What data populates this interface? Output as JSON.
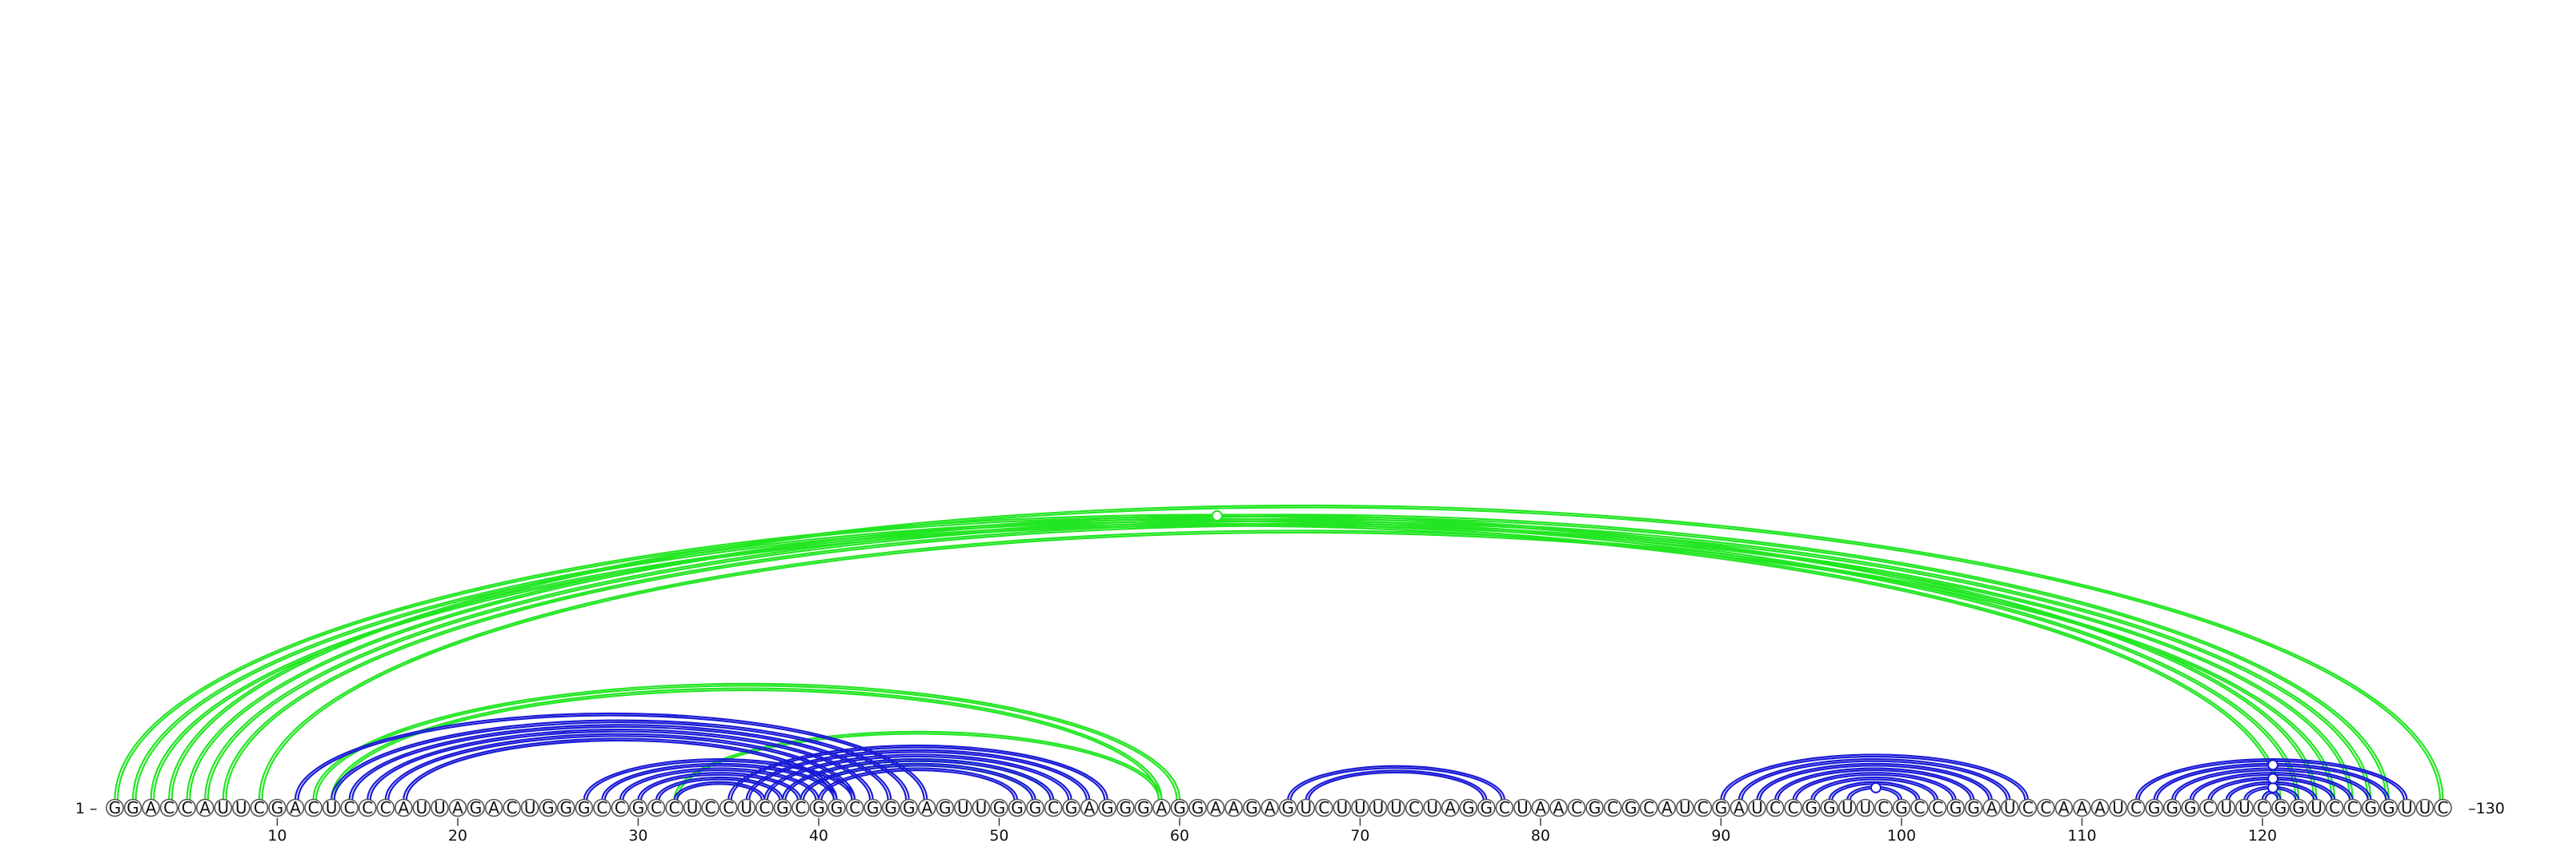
{
  "sequence": "GGACCAUUCGACUCCCAUUAGACUGGGCCGCCUCCUCGCGGCGGGAGUUGGGCGAGGGAGGAAGAGUCUUUUCUAGGCUAACGCGCAUCGAUCCGGUUCGCCGGAUCCAAAUCGGGCUUCGGUCCGGUUC",
  "start_label": "1 –",
  "end_label": "–130",
  "ticks": [
    10,
    20,
    30,
    40,
    50,
    60,
    70,
    80,
    90,
    100,
    110,
    120
  ],
  "colors": {
    "green": "#22e622",
    "blue": "#1a1ad6"
  },
  "arcs": [
    {
      "i": 1,
      "j": 123,
      "color": "green"
    },
    {
      "i": 2,
      "j": 122,
      "color": "green"
    },
    {
      "i": 3,
      "j": 121,
      "color": "green"
    },
    {
      "i": 4,
      "j": 130,
      "color": "green"
    },
    {
      "i": 5,
      "j": 127,
      "color": "green"
    },
    {
      "i": 6,
      "j": 126,
      "color": "green"
    },
    {
      "i": 7,
      "j": 125,
      "color": "green"
    },
    {
      "i": 9,
      "j": 124,
      "color": "green"
    },
    {
      "i": 12,
      "j": 60,
      "color": "green"
    },
    {
      "i": 13,
      "j": 59,
      "color": "green"
    },
    {
      "i": 32,
      "j": 59,
      "color": "green"
    },
    {
      "i": 38,
      "j": 53,
      "color": "green"
    },
    {
      "i": 39,
      "j": 52,
      "color": "green"
    },
    {
      "i": 11,
      "j": 46,
      "color": "blue"
    },
    {
      "i": 13,
      "j": 45,
      "color": "blue"
    },
    {
      "i": 14,
      "j": 44,
      "color": "blue"
    },
    {
      "i": 15,
      "j": 43,
      "color": "blue"
    },
    {
      "i": 16,
      "j": 42,
      "color": "blue"
    },
    {
      "i": 17,
      "j": 41,
      "color": "blue"
    },
    {
      "i": 27,
      "j": 42,
      "color": "blue"
    },
    {
      "i": 28,
      "j": 41,
      "color": "blue"
    },
    {
      "i": 29,
      "j": 40,
      "color": "blue"
    },
    {
      "i": 30,
      "j": 39,
      "color": "blue"
    },
    {
      "i": 31,
      "j": 38,
      "color": "blue"
    },
    {
      "i": 32,
      "j": 37,
      "color": "blue"
    },
    {
      "i": 35,
      "j": 56,
      "color": "blue"
    },
    {
      "i": 36,
      "j": 55,
      "color": "blue"
    },
    {
      "i": 37,
      "j": 54,
      "color": "blue"
    },
    {
      "i": 38,
      "j": 53,
      "color": "blue"
    },
    {
      "i": 39,
      "j": 52,
      "color": "blue"
    },
    {
      "i": 40,
      "j": 51,
      "color": "blue"
    },
    {
      "i": 66,
      "j": 78,
      "color": "blue"
    },
    {
      "i": 67,
      "j": 77,
      "color": "blue"
    },
    {
      "i": 90,
      "j": 107,
      "color": "blue"
    },
    {
      "i": 91,
      "j": 106,
      "color": "blue"
    },
    {
      "i": 92,
      "j": 105,
      "color": "blue"
    },
    {
      "i": 93,
      "j": 104,
      "color": "blue"
    },
    {
      "i": 94,
      "j": 103,
      "color": "blue"
    },
    {
      "i": 95,
      "j": 102,
      "color": "blue"
    },
    {
      "i": 96,
      "j": 101,
      "color": "blue"
    },
    {
      "i": 97,
      "j": 100,
      "color": "blue"
    },
    {
      "i": 113,
      "j": 128,
      "color": "blue"
    },
    {
      "i": 114,
      "j": 127,
      "color": "blue"
    },
    {
      "i": 115,
      "j": 126,
      "color": "blue"
    },
    {
      "i": 116,
      "j": 125,
      "color": "blue"
    },
    {
      "i": 117,
      "j": 124,
      "color": "blue"
    },
    {
      "i": 118,
      "j": 123,
      "color": "blue"
    },
    {
      "i": 119,
      "j": 122,
      "color": "blue"
    },
    {
      "i": 120,
      "j": 121,
      "color": "blue"
    }
  ],
  "markers": [
    {
      "i": 1,
      "j": 123,
      "color": "green"
    },
    {
      "i": 97,
      "j": 100,
      "color": "blue"
    },
    {
      "i": 119,
      "j": 122,
      "color": "blue"
    },
    {
      "i": 117,
      "j": 124,
      "color": "blue"
    },
    {
      "i": 114,
      "j": 127,
      "color": "blue"
    }
  ]
}
